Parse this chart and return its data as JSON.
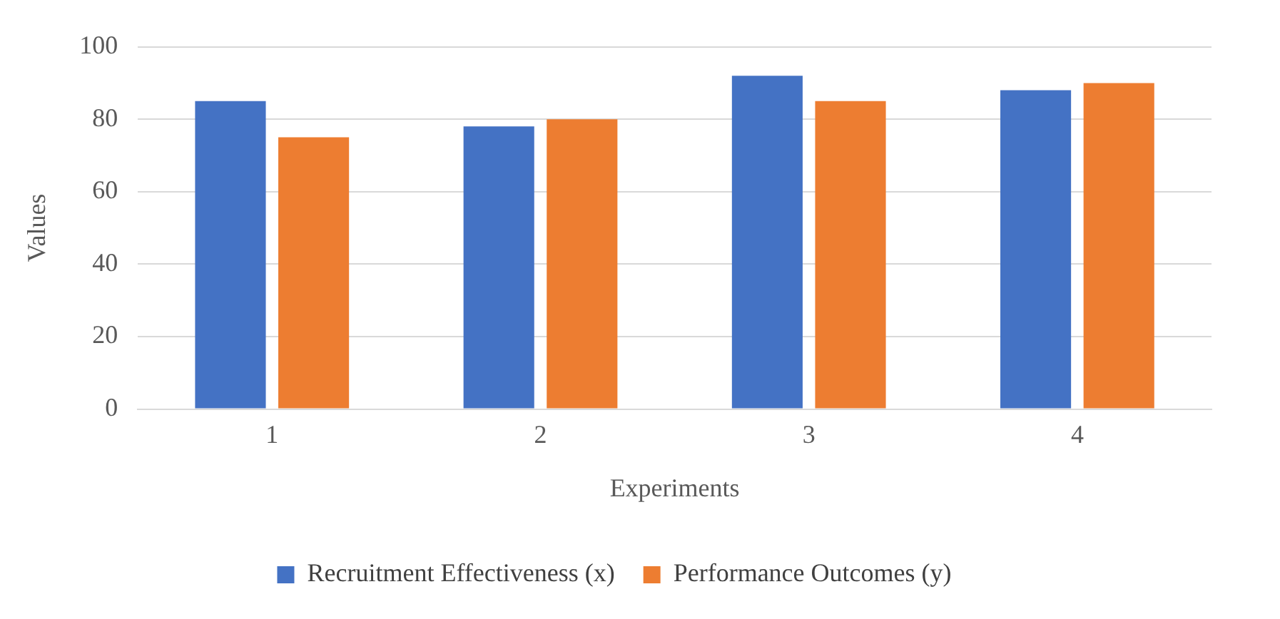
{
  "chart_data": {
    "type": "bar",
    "xlabel": "Experiments",
    "ylabel": "Values",
    "categories": [
      "1",
      "2",
      "3",
      "4"
    ],
    "series": [
      {
        "name": "Recruitment Effectiveness (x)",
        "color": "#4472c4",
        "values": [
          85,
          78,
          92,
          88
        ]
      },
      {
        "name": "Performance Outcomes (y)",
        "color": "#ed7d31",
        "values": [
          75,
          80,
          85,
          90
        ]
      }
    ],
    "ylim": [
      0,
      100
    ],
    "yticks": [
      0,
      20,
      40,
      60,
      80,
      100
    ],
    "grid": "y",
    "legend": "bottom"
  }
}
